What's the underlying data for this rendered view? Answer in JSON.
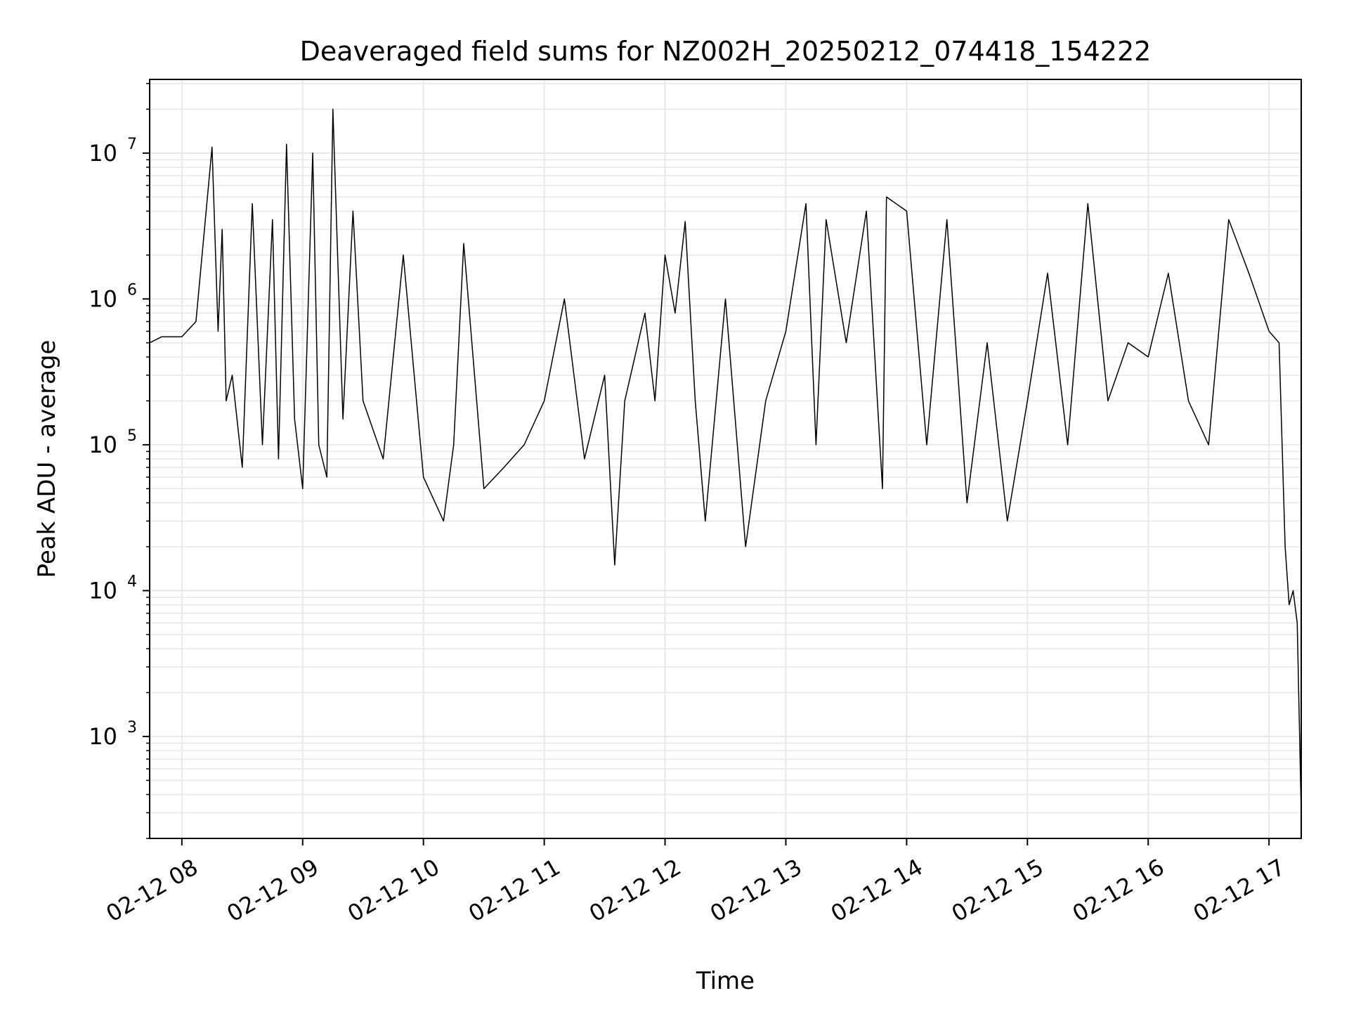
{
  "chart_data": {
    "type": "line",
    "title": "Deaveraged field sums for NZ002H_20250212_074418_154222",
    "xlabel": "Time",
    "ylabel": "Peak ADU - average",
    "yscale": "log",
    "ylim": [
      200,
      32000000
    ],
    "xlim": [
      "2025-02-12 07:44",
      "2025-02-12 17:16"
    ],
    "grid": true,
    "line_color": "#000000",
    "x_ticks": [
      "02-12 08",
      "02-12 09",
      "02-12 10",
      "02-12 11",
      "02-12 12",
      "02-12 13",
      "02-12 14",
      "02-12 15",
      "02-12 16",
      "02-12 17"
    ],
    "y_ticks": [
      {
        "base": "10",
        "exp": "3",
        "value": 1000
      },
      {
        "base": "10",
        "exp": "4",
        "value": 10000
      },
      {
        "base": "10",
        "exp": "5",
        "value": 100000
      },
      {
        "base": "10",
        "exp": "6",
        "value": 1000000
      },
      {
        "base": "10",
        "exp": "7",
        "value": 10000000
      }
    ],
    "series": [
      {
        "x": [
          "07:44",
          "07:50",
          "08:00",
          "08:07",
          "08:15",
          "08:18",
          "08:20",
          "08:22",
          "08:25",
          "08:30",
          "08:35",
          "08:40",
          "08:45",
          "08:48",
          "08:52",
          "08:56",
          "09:00",
          "09:05",
          "09:08",
          "09:12",
          "09:15",
          "09:20",
          "09:25",
          "09:30",
          "09:40",
          "09:50",
          "10:00",
          "10:10",
          "10:15",
          "10:20",
          "10:30",
          "10:40",
          "10:50",
          "11:00",
          "11:10",
          "11:20",
          "11:30",
          "11:35",
          "11:40",
          "11:50",
          "11:55",
          "12:00",
          "12:05",
          "12:10",
          "12:15",
          "12:20",
          "12:30",
          "12:40",
          "12:50",
          "13:00",
          "13:10",
          "13:15",
          "13:20",
          "13:30",
          "13:40",
          "13:48",
          "13:50",
          "14:00",
          "14:10",
          "14:20",
          "14:30",
          "14:40",
          "14:50",
          "15:00",
          "15:10",
          "15:20",
          "15:30",
          "15:40",
          "15:50",
          "16:00",
          "16:10",
          "16:20",
          "16:30",
          "16:40",
          "16:50",
          "17:00",
          "17:05",
          "17:08",
          "17:10",
          "17:12",
          "17:14",
          "17:16"
        ],
        "y": [
          500000,
          550000,
          550000,
          700000,
          11000000,
          600000,
          3000000,
          200000,
          300000,
          70000,
          4500000,
          100000,
          3500000,
          80000,
          11500000,
          150000,
          50000,
          10000000,
          100000,
          60000,
          20000000,
          150000,
          4000000,
          200000,
          80000,
          2000000,
          60000,
          30000,
          100000,
          2400000,
          50000,
          70000,
          100000,
          200000,
          1000000,
          80000,
          300000,
          15000,
          200000,
          800000,
          200000,
          2000000,
          800000,
          3400000,
          200000,
          30000,
          1000000,
          20000,
          200000,
          600000,
          4500000,
          100000,
          3500000,
          500000,
          4000000,
          50000,
          5000000,
          4000000,
          100000,
          3500000,
          40000,
          500000,
          30000,
          200000,
          1500000,
          100000,
          4500000,
          200000,
          500000,
          400000,
          1500000,
          200000,
          100000,
          3500000,
          1500000,
          600000,
          500000,
          20000,
          8000,
          10000,
          6000,
          300
        ]
      }
    ]
  }
}
